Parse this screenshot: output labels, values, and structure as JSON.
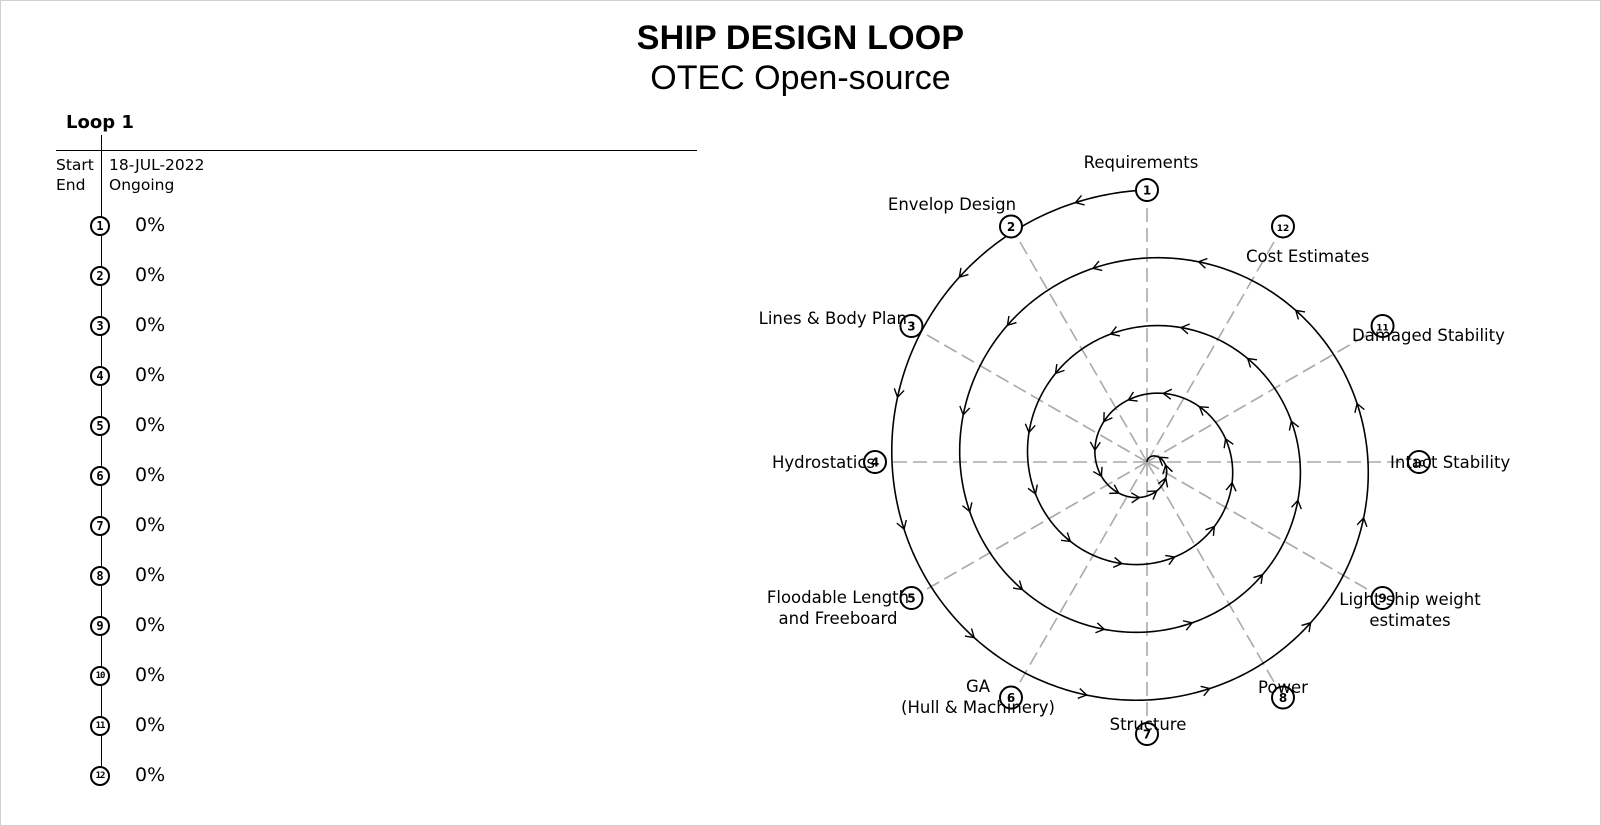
{
  "header": {
    "title": "SHIP DESIGN LOOP",
    "subtitle": "OTEC Open-source"
  },
  "progress_panel": {
    "loop_label": "Loop 1",
    "start_label": "Start",
    "start_value": "18-JUL-2022",
    "end_label": "End",
    "end_value": "Ongoing",
    "steps": [
      {
        "number": "1",
        "progress": "0%"
      },
      {
        "number": "2",
        "progress": "0%"
      },
      {
        "number": "3",
        "progress": "0%"
      },
      {
        "number": "4",
        "progress": "0%"
      },
      {
        "number": "5",
        "progress": "0%"
      },
      {
        "number": "6",
        "progress": "0%"
      },
      {
        "number": "7",
        "progress": "0%"
      },
      {
        "number": "8",
        "progress": "0%"
      },
      {
        "number": "9",
        "progress": "0%"
      },
      {
        "number": "10",
        "progress": "0%"
      },
      {
        "number": "11",
        "progress": "0%"
      },
      {
        "number": "12",
        "progress": "0%"
      }
    ]
  },
  "diagram": {
    "direction": "counter-clockwise",
    "turns": 4,
    "line_color": "#000000",
    "spoke_color": "#aaaaaa",
    "nodes": [
      {
        "number": "1",
        "label": [
          "Requirements"
        ]
      },
      {
        "number": "2",
        "label": [
          "Envelop Design"
        ]
      },
      {
        "number": "3",
        "label": [
          "Lines & Body Plan"
        ]
      },
      {
        "number": "4",
        "label": [
          "Hydrostatics"
        ]
      },
      {
        "number": "5",
        "label": [
          "Floodable Length",
          "and Freeboard"
        ]
      },
      {
        "number": "6",
        "label": [
          "GA",
          "(Hull & Machinery)"
        ]
      },
      {
        "number": "7",
        "label": [
          "Structure"
        ]
      },
      {
        "number": "8",
        "label": [
          "Power"
        ]
      },
      {
        "number": "9",
        "label": [
          "Light ship weight",
          "estimates"
        ]
      },
      {
        "number": "10",
        "label": [
          "Intact Stability"
        ]
      },
      {
        "number": "11",
        "label": [
          "Damaged Stability"
        ]
      },
      {
        "number": "12",
        "label": [
          "Cost Estimates"
        ]
      }
    ]
  }
}
